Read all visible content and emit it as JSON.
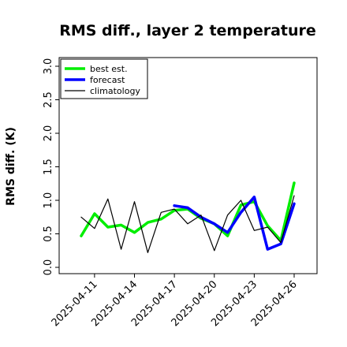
{
  "chart_data": {
    "type": "line",
    "title": "RMS diff., layer 2 temperature",
    "xlabel": "",
    "ylabel": "RMS diff. (K)",
    "ylim": [
      0.0,
      3.0
    ],
    "yticks": [
      "0.0",
      "0.5",
      "1.0",
      "1.5",
      "2.0",
      "2.5",
      "3.0"
    ],
    "x_start": "2025-04-10",
    "x_end": "2025-04-26",
    "xticks": [
      {
        "date": "2025-04-11",
        "label": "2025-04-11",
        "color": "#000000"
      },
      {
        "date": "2025-04-14",
        "label": "2025-04-14",
        "color": "#000000"
      },
      {
        "date": "2025-04-17",
        "label": "2025-04-17",
        "color": "#2e8b2e"
      },
      {
        "date": "2025-04-20",
        "label": "2025-04-20",
        "color": "#000000"
      },
      {
        "date": "2025-04-23",
        "label": "2025-04-23",
        "color": "#000000"
      },
      {
        "date": "2025-04-26",
        "label": "2025-04-26",
        "color": "#000000"
      }
    ],
    "legend": {
      "location": "upper left"
    },
    "series": [
      {
        "name": "best est.",
        "color": "#00ee00",
        "x": [
          "2025-04-10",
          "2025-04-11",
          "2025-04-12",
          "2025-04-13",
          "2025-04-14",
          "2025-04-15",
          "2025-04-16",
          "2025-04-17",
          "2025-04-18",
          "2025-04-19",
          "2025-04-20",
          "2025-04-21",
          "2025-04-22",
          "2025-04-23",
          "2025-04-24",
          "2025-04-25",
          "2025-04-26"
        ],
        "values": [
          0.47,
          0.8,
          0.6,
          0.63,
          0.52,
          0.67,
          0.72,
          0.85,
          0.87,
          0.73,
          0.65,
          0.47,
          0.93,
          0.98,
          0.62,
          0.4,
          1.26
        ]
      },
      {
        "name": "forecast",
        "color": "#0000ff",
        "x": [
          "2025-04-17",
          "2025-04-18",
          "2025-04-19",
          "2025-04-20",
          "2025-04-21",
          "2025-04-22",
          "2025-04-23",
          "2025-04-24",
          "2025-04-25",
          "2025-04-26"
        ],
        "values": [
          0.92,
          0.89,
          0.75,
          0.65,
          0.52,
          0.82,
          1.05,
          0.27,
          0.35,
          0.95
        ]
      },
      {
        "name": "climatology",
        "color": "#000000",
        "x": [
          "2025-04-10",
          "2025-04-11",
          "2025-04-12",
          "2025-04-13",
          "2025-04-14",
          "2025-04-15",
          "2025-04-16",
          "2025-04-17",
          "2025-04-18",
          "2025-04-19",
          "2025-04-20",
          "2025-04-21",
          "2025-04-22",
          "2025-04-23",
          "2025-04-24",
          "2025-04-25",
          "2025-04-26"
        ],
        "values": [
          0.75,
          0.58,
          1.02,
          0.27,
          0.98,
          0.22,
          0.82,
          0.87,
          0.65,
          0.78,
          0.25,
          0.78,
          1.0,
          0.55,
          0.6,
          0.37,
          1.07
        ]
      }
    ]
  }
}
